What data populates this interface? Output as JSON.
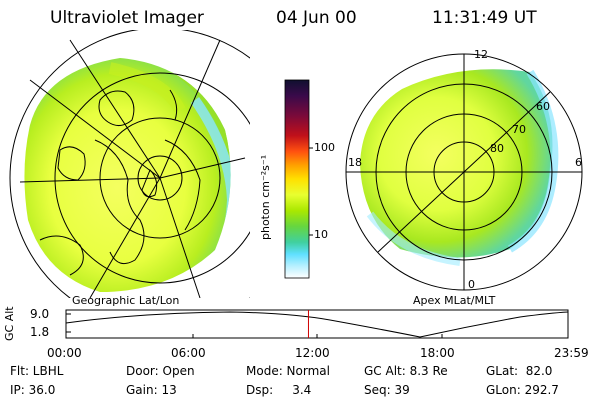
{
  "header": {
    "instrument": "Ultraviolet Imager",
    "date": "04 Jun 00",
    "time": "11:31:49 UT"
  },
  "geo_panel": {
    "caption": "Geographic Lat/Lon"
  },
  "colorbar": {
    "label": "photon cm⁻²s⁻¹",
    "ticks": [
      "100",
      "10"
    ],
    "colors": [
      "#101030",
      "#3a0a4a",
      "#7a0a3a",
      "#c0101a",
      "#ff5010",
      "#ffa000",
      "#ffe000",
      "#e8ff30",
      "#aae800",
      "#66d640",
      "#40d0a0",
      "#60e0ff",
      "#b8f0ff",
      "#ffffff"
    ]
  },
  "apex_panel": {
    "caption": "Apex MLat/MLT",
    "mlt_labels": [
      "12",
      "18",
      "6",
      "0"
    ],
    "lat_labels": [
      "60",
      "70",
      "80"
    ]
  },
  "altitude_plot": {
    "ylabel": "GC Alt",
    "y_ticks": [
      "9.0",
      "1.8"
    ],
    "x_ticks": [
      "00:00",
      "06:00",
      "12:00",
      "18:00",
      "23:59"
    ],
    "current_time_fraction": 0.483
  },
  "info": {
    "flt": "Flt: LBHL",
    "ip": "IP: 36.0",
    "door": "Door: Open",
    "gain": "Gain: 13",
    "mode": "Mode: Normal",
    "dsp": "Dsp:     3.4",
    "gc_alt": "GC Alt: 8.3 Re",
    "seq": "Seq: 39",
    "glat": "GLat:  82.0",
    "glon": "GLon: 292.7"
  }
}
